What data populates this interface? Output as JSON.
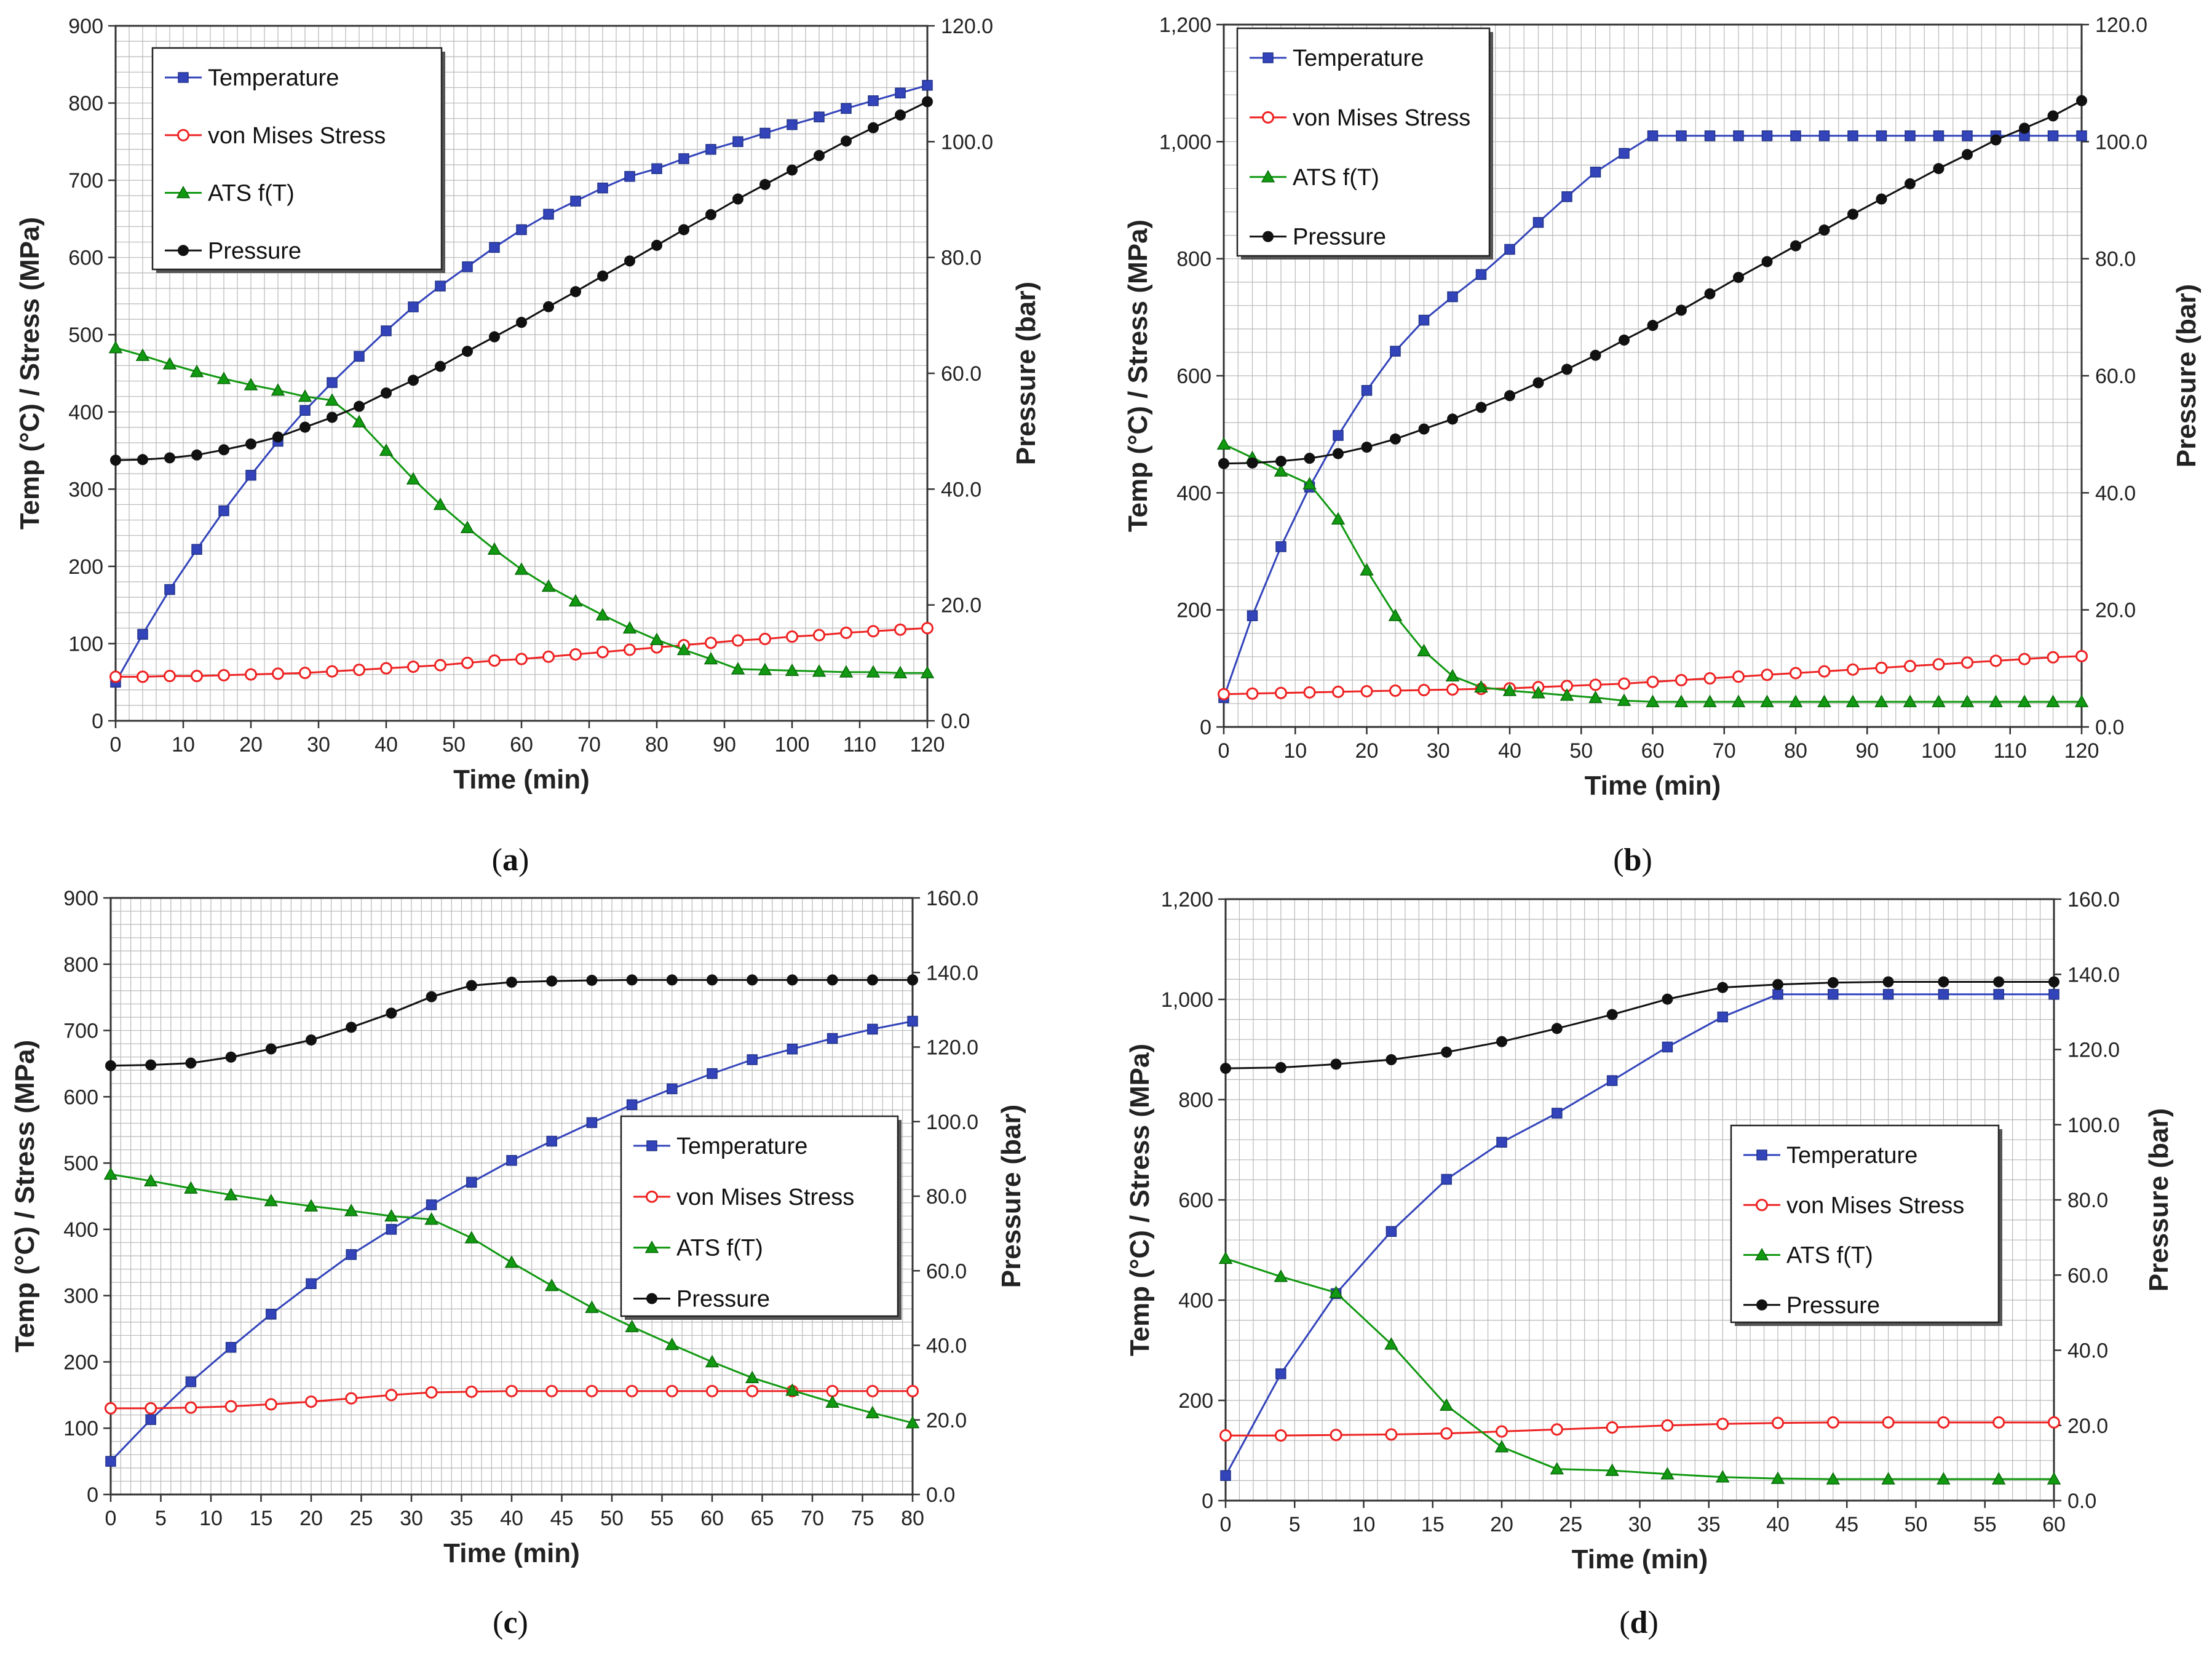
{
  "panels": [
    {
      "caption": "a"
    },
    {
      "caption": "b"
    },
    {
      "caption": "c"
    },
    {
      "caption": "d"
    }
  ],
  "colors": {
    "temperature": "#3344bb",
    "stress": "#ee2222",
    "ats": "#119911",
    "pressure": "#111111",
    "grid": "#b8b8b8"
  },
  "chart_data": [
    {
      "type": "line",
      "xlabel": "Time (min)",
      "ylabel": "Temp (°C) / Stress (MPa)",
      "y2label": "Pressure  (bar)",
      "xlim": [
        0,
        120
      ],
      "ylim": [
        0,
        900
      ],
      "y2lim": [
        0,
        120
      ],
      "xticks": [
        "0",
        "10",
        "20",
        "30",
        "40",
        "50",
        "60",
        "70",
        "80",
        "90",
        "100",
        "110",
        "120"
      ],
      "yticks": [
        "0",
        "100",
        "200",
        "300",
        "400",
        "500",
        "600",
        "700",
        "800",
        "900"
      ],
      "y2ticks": [
        "0.0",
        "20.0",
        "40.0",
        "60.0",
        "80.0",
        "100.0",
        "120.0"
      ],
      "legend": [
        "Temperature",
        "von Mises Stress",
        "ATS f(T)",
        "Pressure"
      ],
      "legend_position": "top-left",
      "x": [
        0,
        4,
        8,
        12,
        16,
        20,
        24,
        28,
        32,
        36,
        40,
        44,
        48,
        52,
        56,
        60,
        64,
        68,
        72,
        76,
        80,
        84,
        88,
        92,
        96,
        100,
        104,
        108,
        112,
        116,
        120
      ],
      "series": [
        {
          "name": "Temperature",
          "axis": "left",
          "values": [
            50,
            112,
            170,
            222,
            272,
            318,
            362,
            402,
            438,
            472,
            505,
            536,
            563,
            588,
            613,
            636,
            656,
            673,
            690,
            705,
            715,
            728,
            740,
            750,
            761,
            772,
            782,
            793,
            803,
            813,
            823
          ]
        },
        {
          "name": "von Mises Stress",
          "axis": "left",
          "values": [
            57,
            57,
            58,
            58,
            59,
            60,
            61,
            62,
            64,
            66,
            68,
            70,
            72,
            75,
            78,
            80,
            83,
            86,
            89,
            92,
            95,
            98,
            101,
            104,
            106,
            109,
            111,
            114,
            116,
            118,
            120
          ]
        },
        {
          "name": "ATS f(T)",
          "axis": "left",
          "values": [
            483,
            473,
            462,
            452,
            443,
            435,
            428,
            420,
            415,
            387,
            350,
            313,
            280,
            250,
            222,
            196,
            174,
            155,
            137,
            120,
            105,
            92,
            80,
            67,
            66,
            65,
            64,
            63,
            63,
            62,
            62
          ]
        },
        {
          "name": "Pressure",
          "axis": "right",
          "values": [
            45,
            45.1,
            45.4,
            45.9,
            46.8,
            47.8,
            49,
            50.7,
            52.4,
            54.3,
            56.6,
            58.8,
            61.2,
            63.8,
            66.3,
            68.8,
            71.5,
            74.1,
            76.8,
            79.4,
            82.1,
            84.8,
            87.4,
            90.1,
            92.6,
            95.1,
            97.6,
            100.1,
            102.4,
            104.6,
            106.9
          ]
        }
      ]
    },
    {
      "type": "line",
      "xlabel": "Time (min)",
      "ylabel": "Temp (°C) / Stress (MPa)",
      "y2label": "Pressure  (bar)",
      "xlim": [
        0,
        120
      ],
      "ylim": [
        0,
        1200
      ],
      "y2lim": [
        0,
        120
      ],
      "xticks": [
        "0",
        "10",
        "20",
        "30",
        "40",
        "50",
        "60",
        "70",
        "80",
        "90",
        "100",
        "110",
        "120"
      ],
      "yticks": [
        "0",
        "200",
        "400",
        "600",
        "800",
        "1,000",
        "1,200"
      ],
      "y2ticks": [
        "0.0",
        "20.0",
        "40.0",
        "60.0",
        "80.0",
        "100.0",
        "120.0"
      ],
      "legend": [
        "Temperature",
        "von Mises Stress",
        "ATS f(T)",
        "Pressure"
      ],
      "legend_position": "top-left",
      "x": [
        0,
        4,
        8,
        12,
        16,
        20,
        24,
        28,
        32,
        36,
        40,
        44,
        48,
        52,
        56,
        60,
        64,
        68,
        72,
        76,
        80,
        84,
        88,
        92,
        96,
        100,
        104,
        108,
        112,
        116,
        120
      ],
      "series": [
        {
          "name": "Temperature",
          "axis": "left",
          "values": [
            50,
            190,
            308,
            410,
            498,
            575,
            642,
            695,
            735,
            773,
            816,
            862,
            906,
            948,
            980,
            1010,
            1010,
            1010,
            1010,
            1010,
            1010,
            1010,
            1010,
            1010,
            1010,
            1010,
            1010,
            1010,
            1010,
            1010,
            1010
          ]
        },
        {
          "name": "von Mises Stress",
          "axis": "left",
          "values": [
            56,
            57,
            58,
            59,
            60,
            61,
            62,
            63,
            64,
            65,
            66,
            68,
            70,
            72,
            74,
            77,
            80,
            83,
            86,
            89,
            92,
            95,
            98,
            101,
            104,
            107,
            110,
            113,
            116,
            119,
            121
          ]
        },
        {
          "name": "ATS f(T)",
          "axis": "left",
          "values": [
            483,
            460,
            437,
            415,
            355,
            268,
            190,
            130,
            87,
            68,
            62,
            58,
            54,
            50,
            45,
            43,
            43,
            43,
            43,
            43,
            43,
            43,
            43,
            43,
            43,
            43,
            43,
            43,
            43,
            43,
            43
          ]
        },
        {
          "name": "Pressure",
          "axis": "right",
          "values": [
            45,
            45.1,
            45.4,
            45.9,
            46.7,
            47.8,
            49.2,
            50.9,
            52.6,
            54.6,
            56.6,
            58.8,
            61.1,
            63.5,
            66.1,
            68.6,
            71.2,
            74,
            76.8,
            79.5,
            82.2,
            84.9,
            87.6,
            90.2,
            92.8,
            95.4,
            97.8,
            100.3,
            102.3,
            104.4,
            107
          ]
        }
      ]
    },
    {
      "type": "line",
      "xlabel": "Time (min)",
      "ylabel": "Temp (°C) / Stress (MPa)",
      "y2label": "Pressure  (bar)",
      "xlim": [
        0,
        80
      ],
      "ylim": [
        0,
        900
      ],
      "y2lim": [
        0,
        160
      ],
      "xticks": [
        "0",
        "5",
        "10",
        "15",
        "20",
        "25",
        "30",
        "35",
        "40",
        "45",
        "50",
        "55",
        "60",
        "65",
        "70",
        "75",
        "80"
      ],
      "yticks": [
        "0",
        "100",
        "200",
        "300",
        "400",
        "500",
        "600",
        "700",
        "800",
        "900"
      ],
      "y2ticks": [
        "0.0",
        "20.0",
        "40.0",
        "60.0",
        "80.0",
        "100.0",
        "120.0",
        "140.0",
        "160.0"
      ],
      "legend": [
        "Temperature",
        "von Mises Stress",
        "ATS f(T)",
        "Pressure"
      ],
      "legend_position": "center-right",
      "x": [
        0,
        4,
        8,
        12,
        16,
        20,
        24,
        28,
        32,
        36,
        40,
        44,
        48,
        52,
        56,
        60,
        64,
        68,
        72,
        76,
        80
      ],
      "series": [
        {
          "name": "Temperature",
          "axis": "left",
          "values": [
            50,
            113,
            170,
            222,
            272,
            318,
            362,
            400,
            437,
            471,
            504,
            533,
            561,
            588,
            612,
            635,
            656,
            672,
            688,
            702,
            714
          ]
        },
        {
          "name": "von Mises Stress",
          "axis": "left",
          "values": [
            130,
            130,
            131,
            133,
            136,
            140,
            145,
            150,
            154,
            155,
            156,
            156,
            156,
            156,
            156,
            156,
            156,
            156,
            156,
            156,
            156
          ]
        },
        {
          "name": "ATS f(T)",
          "axis": "left",
          "values": [
            483,
            473,
            462,
            452,
            443,
            435,
            428,
            420,
            415,
            387,
            350,
            315,
            282,
            253,
            226,
            200,
            176,
            157,
            139,
            123,
            108
          ]
        },
        {
          "name": "Pressure",
          "axis": "right",
          "values": [
            115,
            115.2,
            115.7,
            117.3,
            119.5,
            121.9,
            125.3,
            129.1,
            133.5,
            136.5,
            137.4,
            137.7,
            137.9,
            138,
            138,
            138,
            138,
            138,
            138,
            138,
            138
          ]
        }
      ]
    },
    {
      "type": "line",
      "xlabel": "Time (min)",
      "ylabel": "Temp (°C) / Stress (MPa)",
      "y2label": "Pressure  (bar)",
      "xlim": [
        0,
        60
      ],
      "ylim": [
        0,
        1200
      ],
      "y2lim": [
        0,
        160
      ],
      "xticks": [
        "0",
        "5",
        "10",
        "15",
        "20",
        "25",
        "30",
        "35",
        "40",
        "45",
        "50",
        "55",
        "60"
      ],
      "yticks": [
        "0",
        "200",
        "400",
        "600",
        "800",
        "1,000",
        "1,200"
      ],
      "y2ticks": [
        "0.0",
        "20.0",
        "40.0",
        "60.0",
        "80.0",
        "100.0",
        "120.0",
        "140.0",
        "160.0"
      ],
      "legend": [
        "Temperature",
        "von Mises Stress",
        "ATS f(T)",
        "Pressure"
      ],
      "legend_position": "center-right",
      "x": [
        0,
        4,
        8,
        12,
        16,
        20,
        24,
        28,
        32,
        36,
        40,
        44,
        48,
        52,
        56,
        60
      ],
      "series": [
        {
          "name": "Temperature",
          "axis": "left",
          "values": [
            50,
            253,
            413,
            537,
            641,
            715,
            773,
            838,
            905,
            965,
            1010,
            1010,
            1010,
            1010,
            1010,
            1010
          ]
        },
        {
          "name": "von Mises Stress",
          "axis": "left",
          "values": [
            130,
            130,
            131,
            132,
            134,
            138,
            142,
            146,
            150,
            153,
            155,
            156,
            156,
            156,
            156,
            156
          ]
        },
        {
          "name": "ATS f(T)",
          "axis": "left",
          "values": [
            483,
            447,
            415,
            312,
            190,
            107,
            63,
            60,
            53,
            47,
            44,
            43,
            43,
            43,
            43,
            43
          ]
        },
        {
          "name": "Pressure",
          "axis": "right",
          "values": [
            115,
            115.2,
            116.1,
            117.3,
            119.3,
            122.1,
            125.6,
            129.3,
            133.4,
            136.5,
            137.3,
            137.8,
            138,
            138,
            138,
            138
          ]
        }
      ]
    }
  ]
}
